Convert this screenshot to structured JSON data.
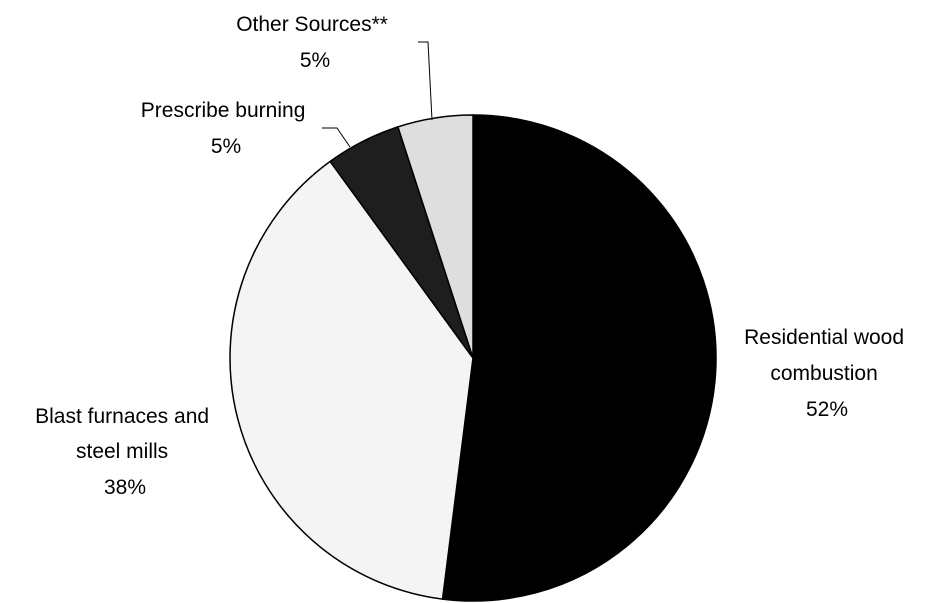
{
  "chart_data": {
    "type": "pie",
    "start_angle_deg": 0,
    "direction": "clockwise",
    "series": [
      {
        "label_lines": [
          "Residential wood",
          "combustion"
        ],
        "pct_text": "52%",
        "value": 52,
        "color": "#000000"
      },
      {
        "label_lines": [
          "Blast furnaces and",
          "steel mills"
        ],
        "pct_text": "38%",
        "value": 38,
        "color": "#f4f4f4"
      },
      {
        "label_lines": [
          "Prescribe burning"
        ],
        "pct_text": "5%",
        "value": 5,
        "color": "#1e1e1e"
      },
      {
        "label_lines": [
          "Other Sources**"
        ],
        "pct_text": "5%",
        "value": 5,
        "color": "#dedede"
      }
    ]
  }
}
